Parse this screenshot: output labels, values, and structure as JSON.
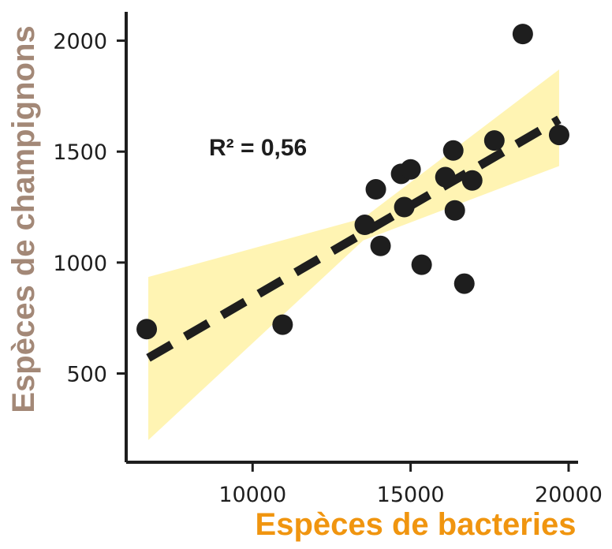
{
  "chart_data": {
    "type": "scatter",
    "xlabel": "Espèces de bacteries",
    "ylabel": "Espèces de champignons",
    "annotation": "R² = 0,56",
    "xlim": [
      6000,
      20300
    ],
    "ylim": [
      100,
      2130
    ],
    "xticks": [
      10000,
      15000,
      20000
    ],
    "yticks": [
      500,
      1000,
      1500,
      2000
    ],
    "points": [
      {
        "x": 6650,
        "y": 700
      },
      {
        "x": 10950,
        "y": 720
      },
      {
        "x": 13550,
        "y": 1170
      },
      {
        "x": 13900,
        "y": 1330
      },
      {
        "x": 14050,
        "y": 1075
      },
      {
        "x": 14700,
        "y": 1400
      },
      {
        "x": 14800,
        "y": 1250
      },
      {
        "x": 15000,
        "y": 1420
      },
      {
        "x": 15350,
        "y": 990
      },
      {
        "x": 16100,
        "y": 1385
      },
      {
        "x": 16350,
        "y": 1505
      },
      {
        "x": 16400,
        "y": 1235
      },
      {
        "x": 16700,
        "y": 905
      },
      {
        "x": 16950,
        "y": 1370
      },
      {
        "x": 17650,
        "y": 1550
      },
      {
        "x": 18550,
        "y": 2030
      },
      {
        "x": 19700,
        "y": 1575
      }
    ],
    "trendline": {
      "x_start": 6700,
      "y_start": 570,
      "x_end": 19700,
      "y_end": 1645
    },
    "confidence_band": {
      "x": [
        6700,
        13500,
        19700
      ],
      "lower": [
        200,
        1100,
        1435
      ],
      "upper": [
        935,
        1200,
        1870
      ]
    },
    "colors": {
      "points": "#1e1e1e",
      "trendline": "#1e1e1e",
      "band": "#fff4b3",
      "axis": "#1e1e1e",
      "xlabel": "#f0950f",
      "ylabel": "#a38877"
    },
    "grid": false,
    "legend": "none"
  }
}
